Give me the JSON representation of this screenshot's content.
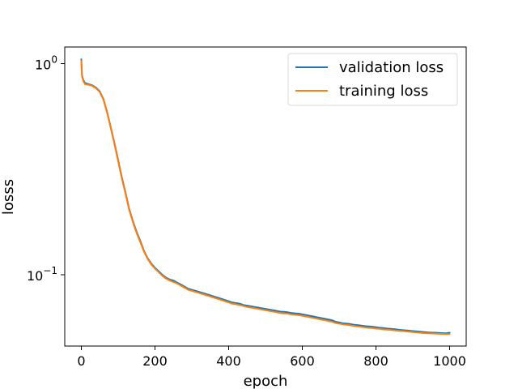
{
  "chart_data": {
    "type": "line",
    "xlabel": "epoch",
    "ylabel": "losss",
    "xlim": [
      -45,
      1045
    ],
    "ylim": [
      0.046,
      1.2
    ],
    "yscale": "log",
    "x_ticks": [
      0,
      200,
      400,
      600,
      800,
      1000
    ],
    "x_tick_labels": [
      "0",
      "200",
      "400",
      "600",
      "800",
      "1000"
    ],
    "y_ticks": [
      0.1,
      1
    ],
    "y_tick_base": "10",
    "y_tick_exponents": [
      "−1",
      "0"
    ],
    "grid": false,
    "legend": "top-right",
    "series": [
      {
        "name": "validation loss",
        "color": "#1f77b4",
        "x": [
          0,
          1,
          2,
          5,
          10,
          20,
          30,
          40,
          50,
          60,
          70,
          80,
          90,
          100,
          110,
          120,
          130,
          140,
          150,
          160,
          170,
          180,
          190,
          200,
          210,
          220,
          230,
          240,
          250,
          260,
          270,
          280,
          290,
          300,
          310,
          320,
          330,
          340,
          350,
          360,
          370,
          380,
          390,
          400,
          410,
          420,
          430,
          440,
          450,
          460,
          470,
          480,
          490,
          500,
          510,
          520,
          530,
          540,
          550,
          560,
          570,
          580,
          590,
          600,
          610,
          620,
          630,
          640,
          650,
          660,
          670,
          680,
          690,
          700,
          710,
          720,
          730,
          740,
          750,
          760,
          770,
          780,
          790,
          800,
          810,
          820,
          830,
          840,
          850,
          860,
          870,
          880,
          890,
          900,
          910,
          920,
          930,
          940,
          950,
          960,
          970,
          980,
          990,
          1000
        ],
        "y": [
          1.05,
          0.95,
          0.88,
          0.84,
          0.81,
          0.8,
          0.79,
          0.77,
          0.74,
          0.68,
          0.59,
          0.5,
          0.42,
          0.35,
          0.29,
          0.245,
          0.205,
          0.18,
          0.16,
          0.145,
          0.13,
          0.12,
          0.113,
          0.108,
          0.104,
          0.1,
          0.097,
          0.095,
          0.094,
          0.092,
          0.09,
          0.088,
          0.086,
          0.085,
          0.084,
          0.083,
          0.082,
          0.081,
          0.08,
          0.079,
          0.078,
          0.077,
          0.076,
          0.075,
          0.074,
          0.0735,
          0.073,
          0.072,
          0.0715,
          0.071,
          0.0705,
          0.07,
          0.0695,
          0.069,
          0.0685,
          0.068,
          0.0675,
          0.067,
          0.0668,
          0.0665,
          0.066,
          0.0657,
          0.0655,
          0.065,
          0.0645,
          0.064,
          0.0635,
          0.063,
          0.0625,
          0.062,
          0.0615,
          0.061,
          0.06,
          0.0595,
          0.059,
          0.0588,
          0.0585,
          0.058,
          0.0578,
          0.0575,
          0.0572,
          0.057,
          0.0568,
          0.0565,
          0.0562,
          0.056,
          0.0557,
          0.0555,
          0.0553,
          0.055,
          0.0548,
          0.0546,
          0.0544,
          0.0542,
          0.054,
          0.0538,
          0.0536,
          0.0534,
          0.0533,
          0.0532,
          0.0531,
          0.053,
          0.0529,
          0.0532
        ]
      },
      {
        "name": "training loss",
        "color": "#ff7f0e",
        "x": [
          0,
          1,
          2,
          5,
          10,
          20,
          30,
          40,
          50,
          60,
          70,
          80,
          90,
          100,
          110,
          120,
          130,
          140,
          150,
          160,
          170,
          180,
          190,
          200,
          210,
          220,
          230,
          240,
          250,
          260,
          270,
          280,
          290,
          300,
          310,
          320,
          330,
          340,
          350,
          360,
          370,
          380,
          390,
          400,
          410,
          420,
          430,
          440,
          450,
          460,
          470,
          480,
          490,
          500,
          510,
          520,
          530,
          540,
          550,
          560,
          570,
          580,
          590,
          600,
          610,
          620,
          630,
          640,
          650,
          660,
          670,
          680,
          690,
          700,
          710,
          720,
          730,
          740,
          750,
          760,
          770,
          780,
          790,
          800,
          810,
          820,
          830,
          840,
          850,
          860,
          870,
          880,
          890,
          900,
          910,
          920,
          930,
          940,
          950,
          960,
          970,
          980,
          990,
          1000
        ],
        "y": [
          1.03,
          0.93,
          0.87,
          0.83,
          0.8,
          0.795,
          0.785,
          0.765,
          0.735,
          0.675,
          0.585,
          0.495,
          0.415,
          0.345,
          0.286,
          0.242,
          0.203,
          0.178,
          0.158,
          0.143,
          0.129,
          0.119,
          0.112,
          0.107,
          0.103,
          0.099,
          0.096,
          0.094,
          0.0925,
          0.091,
          0.089,
          0.087,
          0.085,
          0.084,
          0.083,
          0.082,
          0.081,
          0.08,
          0.079,
          0.078,
          0.077,
          0.076,
          0.075,
          0.074,
          0.073,
          0.0725,
          0.072,
          0.0712,
          0.0705,
          0.07,
          0.0695,
          0.069,
          0.0685,
          0.068,
          0.0675,
          0.067,
          0.0665,
          0.066,
          0.0657,
          0.0654,
          0.065,
          0.0647,
          0.0644,
          0.064,
          0.0635,
          0.063,
          0.0625,
          0.062,
          0.0615,
          0.061,
          0.0605,
          0.06,
          0.0592,
          0.0587,
          0.0583,
          0.058,
          0.0577,
          0.0573,
          0.057,
          0.0567,
          0.0564,
          0.0562,
          0.056,
          0.0557,
          0.0555,
          0.0552,
          0.055,
          0.0548,
          0.0546,
          0.0544,
          0.0542,
          0.054,
          0.0538,
          0.0536,
          0.0534,
          0.0532,
          0.053,
          0.0529,
          0.0528,
          0.0527,
          0.0526,
          0.0525,
          0.0524,
          0.0524
        ]
      }
    ]
  }
}
